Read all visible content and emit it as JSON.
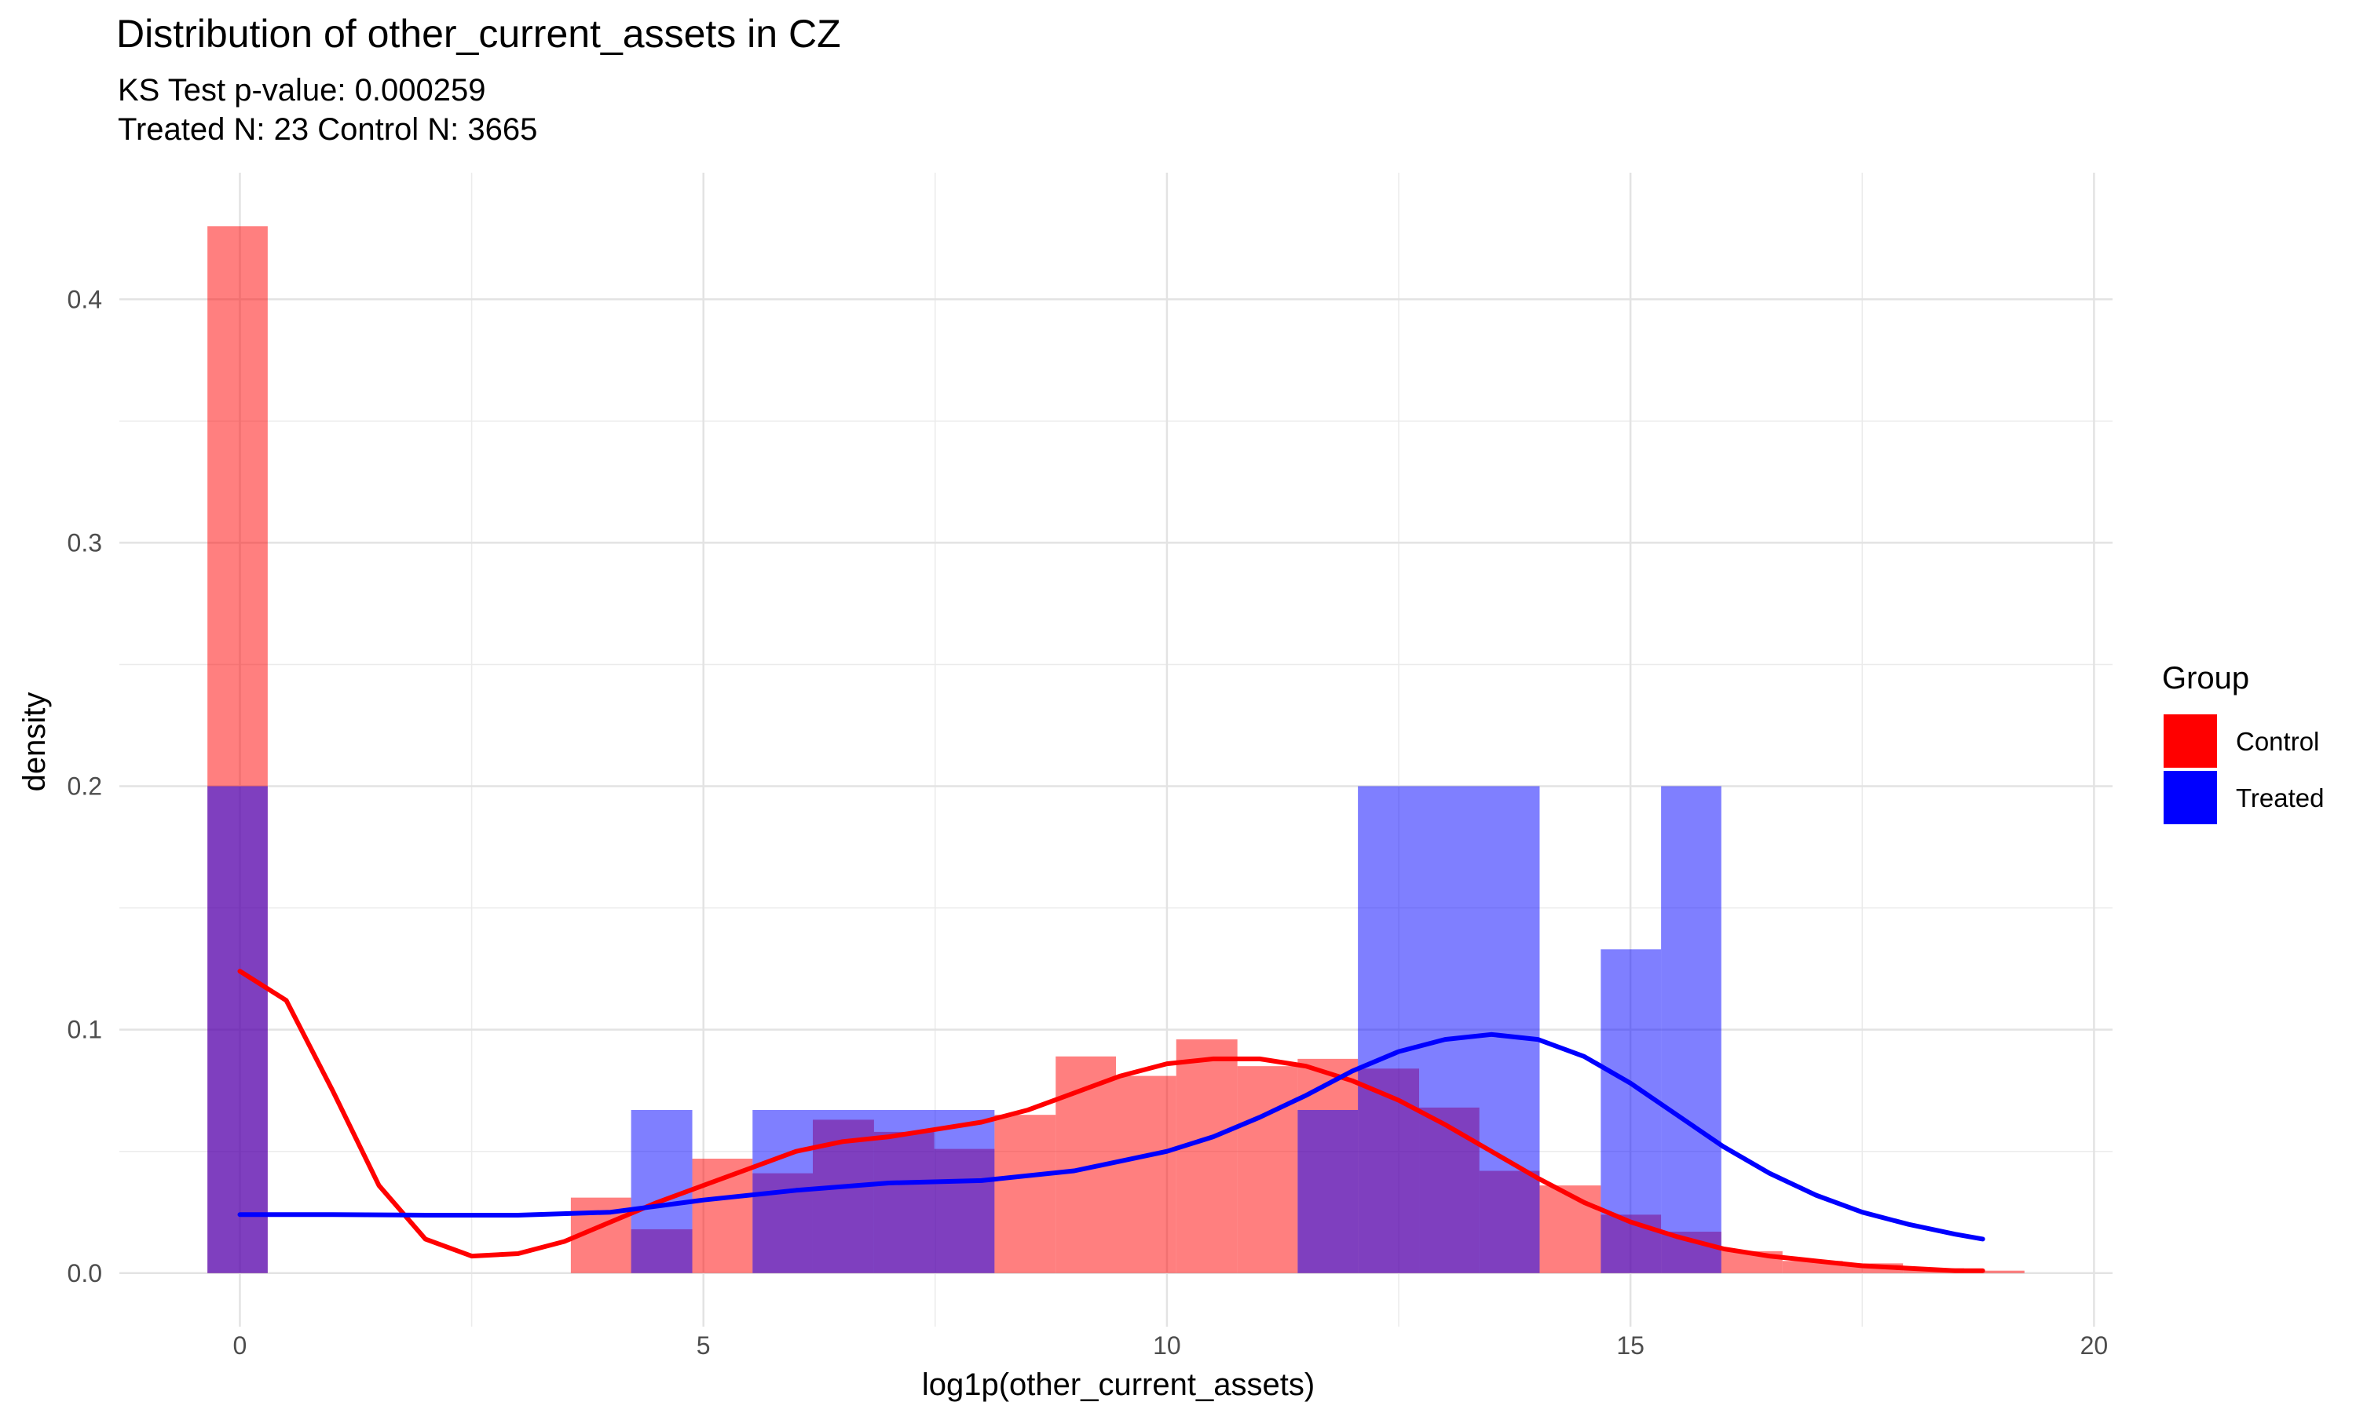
{
  "chart_data": {
    "type": "histogram",
    "title": "Distribution of other_current_assets in CZ",
    "subtitle_lines": [
      "KS Test p-value: 0.000259",
      "Treated N: 23 Control N: 3665"
    ],
    "xlabel": "log1p(other_current_assets)",
    "ylabel": "density",
    "xlim": [
      -1.3,
      20.2
    ],
    "ylim": [
      -0.022,
      0.452
    ],
    "x_ticks": [
      0,
      5,
      10,
      15,
      20
    ],
    "y_ticks": [
      0.0,
      0.1,
      0.2,
      0.3,
      0.4
    ],
    "x_tick_labels": [
      "0",
      "5",
      "10",
      "15",
      "20"
    ],
    "y_tick_labels": [
      "0.0",
      "0.1",
      "0.2",
      "0.3",
      "0.4"
    ],
    "grid": true,
    "bin_width": 0.653,
    "legend": {
      "title": "Group",
      "position": "right",
      "items": [
        {
          "label": "Control",
          "color": "#ff0000"
        },
        {
          "label": "Treated",
          "color": "#0000ff"
        }
      ]
    },
    "series": [
      {
        "name": "Control",
        "color": "#ff0000",
        "fill_opacity": 0.5,
        "bins": [
          {
            "start": -0.35,
            "end": 0.3,
            "value": 0.43
          },
          {
            "start": 3.57,
            "end": 4.22,
            "value": 0.031
          },
          {
            "start": 4.22,
            "end": 4.88,
            "value": 0.018
          },
          {
            "start": 4.88,
            "end": 5.53,
            "value": 0.047
          },
          {
            "start": 5.53,
            "end": 6.18,
            "value": 0.041
          },
          {
            "start": 6.18,
            "end": 6.84,
            "value": 0.063
          },
          {
            "start": 6.84,
            "end": 7.49,
            "value": 0.058
          },
          {
            "start": 7.49,
            "end": 8.14,
            "value": 0.051
          },
          {
            "start": 8.14,
            "end": 8.8,
            "value": 0.065
          },
          {
            "start": 8.8,
            "end": 9.45,
            "value": 0.089
          },
          {
            "start": 9.45,
            "end": 10.1,
            "value": 0.081
          },
          {
            "start": 10.1,
            "end": 10.76,
            "value": 0.096
          },
          {
            "start": 10.76,
            "end": 11.41,
            "value": 0.085
          },
          {
            "start": 11.41,
            "end": 12.06,
            "value": 0.088
          },
          {
            "start": 12.06,
            "end": 12.72,
            "value": 0.084
          },
          {
            "start": 12.72,
            "end": 13.37,
            "value": 0.068
          },
          {
            "start": 13.37,
            "end": 14.02,
            "value": 0.042
          },
          {
            "start": 14.02,
            "end": 14.68,
            "value": 0.036
          },
          {
            "start": 14.68,
            "end": 15.33,
            "value": 0.024
          },
          {
            "start": 15.33,
            "end": 15.98,
            "value": 0.017
          },
          {
            "start": 15.98,
            "end": 16.64,
            "value": 0.009
          },
          {
            "start": 16.64,
            "end": 17.29,
            "value": 0.005
          },
          {
            "start": 17.29,
            "end": 17.94,
            "value": 0.004
          },
          {
            "start": 17.94,
            "end": 18.6,
            "value": 0.002
          },
          {
            "start": 18.6,
            "end": 19.25,
            "value": 0.001
          }
        ],
        "density_curve": [
          [
            0.0,
            0.124
          ],
          [
            0.5,
            0.112
          ],
          [
            1.0,
            0.075
          ],
          [
            1.5,
            0.036
          ],
          [
            2.0,
            0.014
          ],
          [
            2.5,
            0.007
          ],
          [
            3.0,
            0.008
          ],
          [
            3.5,
            0.013
          ],
          [
            4.0,
            0.021
          ],
          [
            4.5,
            0.029
          ],
          [
            5.0,
            0.036
          ],
          [
            5.5,
            0.043
          ],
          [
            6.0,
            0.05
          ],
          [
            6.5,
            0.054
          ],
          [
            7.0,
            0.056
          ],
          [
            7.5,
            0.059
          ],
          [
            8.0,
            0.062
          ],
          [
            8.5,
            0.067
          ],
          [
            9.0,
            0.074
          ],
          [
            9.5,
            0.081
          ],
          [
            10.0,
            0.086
          ],
          [
            10.5,
            0.088
          ],
          [
            11.0,
            0.088
          ],
          [
            11.5,
            0.085
          ],
          [
            12.0,
            0.079
          ],
          [
            12.5,
            0.071
          ],
          [
            13.0,
            0.061
          ],
          [
            13.5,
            0.05
          ],
          [
            14.0,
            0.039
          ],
          [
            14.5,
            0.029
          ],
          [
            15.0,
            0.021
          ],
          [
            15.5,
            0.015
          ],
          [
            16.0,
            0.01
          ],
          [
            16.5,
            0.007
          ],
          [
            17.0,
            0.005
          ],
          [
            17.5,
            0.003
          ],
          [
            18.0,
            0.002
          ],
          [
            18.5,
            0.001
          ],
          [
            18.8,
            0.001
          ]
        ]
      },
      {
        "name": "Treated",
        "color": "#0000ff",
        "fill_opacity": 0.5,
        "bins": [
          {
            "start": -0.35,
            "end": 0.3,
            "value": 0.2
          },
          {
            "start": 4.22,
            "end": 4.88,
            "value": 0.067
          },
          {
            "start": 5.53,
            "end": 8.14,
            "value": 0.067
          },
          {
            "start": 11.41,
            "end": 12.06,
            "value": 0.067
          },
          {
            "start": 12.06,
            "end": 14.02,
            "value": 0.2
          },
          {
            "start": 14.68,
            "end": 15.33,
            "value": 0.133
          },
          {
            "start": 15.33,
            "end": 15.98,
            "value": 0.2
          }
        ],
        "density_curve": [
          [
            0.0,
            0.024
          ],
          [
            1.0,
            0.024
          ],
          [
            2.0,
            0.0238
          ],
          [
            3.0,
            0.0238
          ],
          [
            4.0,
            0.025
          ],
          [
            5.0,
            0.03
          ],
          [
            6.0,
            0.034
          ],
          [
            7.0,
            0.037
          ],
          [
            8.0,
            0.038
          ],
          [
            9.0,
            0.042
          ],
          [
            10.0,
            0.05
          ],
          [
            10.5,
            0.056
          ],
          [
            11.0,
            0.064
          ],
          [
            11.5,
            0.073
          ],
          [
            12.0,
            0.083
          ],
          [
            12.5,
            0.091
          ],
          [
            13.0,
            0.096
          ],
          [
            13.5,
            0.098
          ],
          [
            14.0,
            0.096
          ],
          [
            14.5,
            0.089
          ],
          [
            15.0,
            0.078
          ],
          [
            15.5,
            0.065
          ],
          [
            16.0,
            0.052
          ],
          [
            16.5,
            0.041
          ],
          [
            17.0,
            0.032
          ],
          [
            17.5,
            0.025
          ],
          [
            18.0,
            0.02
          ],
          [
            18.5,
            0.016
          ],
          [
            18.8,
            0.014
          ]
        ]
      }
    ]
  }
}
